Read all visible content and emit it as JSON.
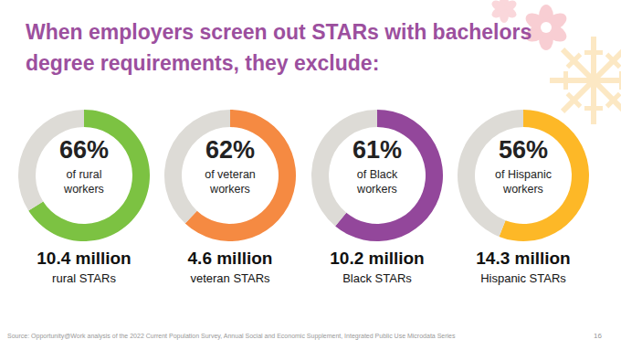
{
  "title": "When employers screen out STARs with bachelors degree requirements, they exclude:",
  "source": "Source: Opportunity@Work analysis of the 2022 Current Population Survey, Annual Social and Economic Supplement, Integrated Public Use Microdata Series",
  "page": "16",
  "chart_data": [
    {
      "type": "pie",
      "categories": [
        "of rural workers",
        null
      ],
      "values": [
        66,
        34
      ],
      "value_labels": [
        "66%",
        null
      ],
      "data_labels": true,
      "colors": [
        "#7cc242",
        "#dddbd6"
      ],
      "caption": [
        "10.4 million",
        "rural STARs"
      ]
    },
    {
      "type": "pie",
      "categories": [
        "of veteran workers",
        null
      ],
      "values": [
        62,
        38
      ],
      "value_labels": [
        "62%",
        null
      ],
      "data_labels": true,
      "colors": [
        "#f58a42",
        "#dddbd6"
      ],
      "caption": [
        "4.6 million",
        "veteran STARs"
      ]
    },
    {
      "type": "pie",
      "categories": [
        "of Black workers",
        null
      ],
      "values": [
        61,
        39
      ],
      "value_labels": [
        "61%",
        null
      ],
      "data_labels": true,
      "colors": [
        "#93479b",
        "#dddbd6"
      ],
      "caption": [
        "10.2 million",
        "Black STARs"
      ]
    },
    {
      "type": "pie",
      "categories": [
        "of Hispanic workers",
        null
      ],
      "values": [
        56,
        44
      ],
      "value_labels": [
        "56%",
        null
      ],
      "data_labels": true,
      "colors": [
        "#fdb827",
        "#dddbd6"
      ],
      "caption": [
        "14.3 million",
        "Hispanic STARs"
      ]
    }
  ]
}
